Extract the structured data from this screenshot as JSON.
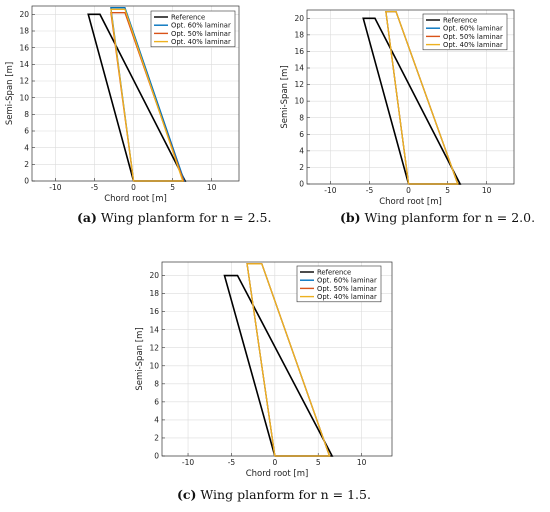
{
  "chart_data": [
    {
      "type": "line",
      "xlabel": "Chord root [m]",
      "ylabel": "Semi-Span [m]",
      "xlim": [
        -13,
        13.5
      ],
      "ylim": [
        0,
        21
      ],
      "xticks": [
        "-10",
        "-5",
        "0",
        "5",
        "10"
      ],
      "yticks": [
        "0",
        "2",
        "4",
        "6",
        "8",
        "10",
        "12",
        "14",
        "16",
        "18",
        "20"
      ],
      "grid": true,
      "legend_position": "top-right",
      "series": [
        {
          "name": "Reference",
          "color": "#000000",
          "x": [
            0,
            -5.8,
            -4.3,
            6.6,
            0
          ],
          "y": [
            0,
            20,
            20,
            0,
            0
          ]
        },
        {
          "name": "Opt. 60% laminar",
          "color": "#0072BD",
          "x": [
            0,
            -2.9,
            -1.1,
            6.5,
            0
          ],
          "y": [
            0,
            20.8,
            20.8,
            0,
            0
          ]
        },
        {
          "name": "Opt. 50% laminar",
          "color": "#D95319",
          "x": [
            0,
            -2.9,
            -1.1,
            6.4,
            0
          ],
          "y": [
            0,
            20.2,
            20.2,
            0,
            0
          ]
        },
        {
          "name": "Opt. 40% laminar",
          "color": "#EDB120",
          "x": [
            0,
            -2.9,
            -1.1,
            6.3,
            0
          ],
          "y": [
            0,
            20.6,
            20.6,
            0,
            0
          ]
        }
      ]
    },
    {
      "type": "line",
      "xlabel": "Chord root [m]",
      "ylabel": "Semi-Span [m]",
      "xlim": [
        -13,
        13.5
      ],
      "ylim": [
        0,
        21
      ],
      "xticks": [
        "-10",
        "-5",
        "0",
        "5",
        "10"
      ],
      "yticks": [
        "0",
        "2",
        "4",
        "6",
        "8",
        "10",
        "12",
        "14",
        "16",
        "18",
        "20"
      ],
      "grid": true,
      "legend_position": "top-right",
      "series": [
        {
          "name": "Reference",
          "color": "#000000",
          "x": [
            0,
            -5.8,
            -4.3,
            6.6,
            0
          ],
          "y": [
            0,
            20,
            20,
            0,
            0
          ]
        },
        {
          "name": "Opt. 60% laminar",
          "color": "#0072BD",
          "x": [
            0,
            -2.9,
            -1.6,
            6.3,
            0
          ],
          "y": [
            0,
            20.8,
            20.8,
            0,
            0
          ]
        },
        {
          "name": "Opt. 50% laminar",
          "color": "#D95319",
          "x": [
            0,
            -2.9,
            -1.6,
            6.3,
            0
          ],
          "y": [
            0,
            20.8,
            20.8,
            0,
            0
          ]
        },
        {
          "name": "Opt. 40% laminar",
          "color": "#EDB120",
          "x": [
            0,
            -2.9,
            -1.6,
            6.3,
            0
          ],
          "y": [
            0,
            20.8,
            20.8,
            0,
            0
          ]
        }
      ]
    },
    {
      "type": "line",
      "xlabel": "Chord root [m]",
      "ylabel": "Semi-Span [m]",
      "xlim": [
        -13,
        13.5
      ],
      "ylim": [
        0,
        21.5
      ],
      "xticks": [
        "-10",
        "-5",
        "0",
        "5",
        "10"
      ],
      "yticks": [
        "0",
        "2",
        "4",
        "6",
        "8",
        "10",
        "12",
        "14",
        "16",
        "18",
        "20"
      ],
      "grid": true,
      "legend_position": "top-right",
      "series": [
        {
          "name": "Reference",
          "color": "#000000",
          "x": [
            0,
            -5.8,
            -4.3,
            6.6,
            0
          ],
          "y": [
            0,
            20,
            20,
            0,
            0
          ]
        },
        {
          "name": "Opt. 60% laminar",
          "color": "#0072BD",
          "x": [
            0,
            -3.2,
            -1.5,
            6.3,
            0
          ],
          "y": [
            0,
            21.3,
            21.3,
            0,
            0
          ]
        },
        {
          "name": "Opt. 50% laminar",
          "color": "#D95319",
          "x": [
            0,
            -3.2,
            -1.5,
            6.3,
            0
          ],
          "y": [
            0,
            21.3,
            21.3,
            0,
            0
          ]
        },
        {
          "name": "Opt. 40% laminar",
          "color": "#EDB120",
          "x": [
            0,
            -3.2,
            -1.5,
            6.3,
            0
          ],
          "y": [
            0,
            21.3,
            21.3,
            0,
            0
          ]
        }
      ]
    }
  ],
  "captions": [
    {
      "letter": "(a)",
      "text": " Wing planform for n = 2.5."
    },
    {
      "letter": "(b)",
      "text": " Wing planform for n = 2.0."
    },
    {
      "letter": "(c)",
      "text": " Wing planform for n = 1.5."
    }
  ]
}
